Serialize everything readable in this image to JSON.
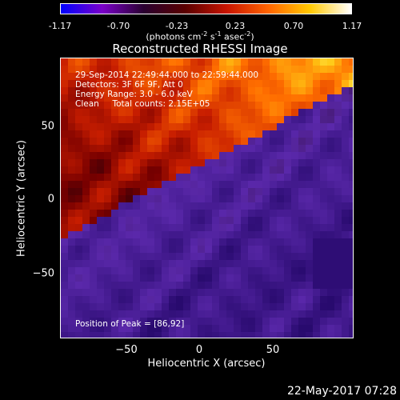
{
  "colorbar": {
    "ticks": [
      "-1.17",
      "-0.70",
      "-0.23",
      "0.23",
      "0.70",
      "1.17"
    ],
    "units_prefix": "(photons cm",
    "units_exp1": "-2",
    "units_mid1": " s",
    "units_exp2": "-1",
    "units_mid2": " asec",
    "units_exp3": "-2",
    "units_suffix": ")",
    "colors": [
      "#0000ff",
      "#7a00c8",
      "#2a0030",
      "#5a0000",
      "#c81400",
      "#ff6400",
      "#ffc800",
      "#ffffff"
    ]
  },
  "title": "Reconstructed RHESSI Image",
  "annotations": {
    "line1": "29-Sep-2014 22:49:44.000 to 22:59:44.000",
    "line2": "Detectors: 3F 6F 9F, Att 0",
    "line3": "Energy Range: 3.0 - 6.0 keV",
    "line4": "Clean     Total counts: 2.15E+05",
    "peak": "Position of Peak = [86,92]"
  },
  "axes": {
    "xlabel": "Heliocentric X (arcsec)",
    "ylabel": "Heliocentric Y (arcsec)",
    "xticks": [
      "−50",
      "0",
      "50"
    ],
    "yticks": [
      "50",
      "0",
      "−50"
    ]
  },
  "footer": {
    "date": "22-May-2017 07:28"
  }
}
